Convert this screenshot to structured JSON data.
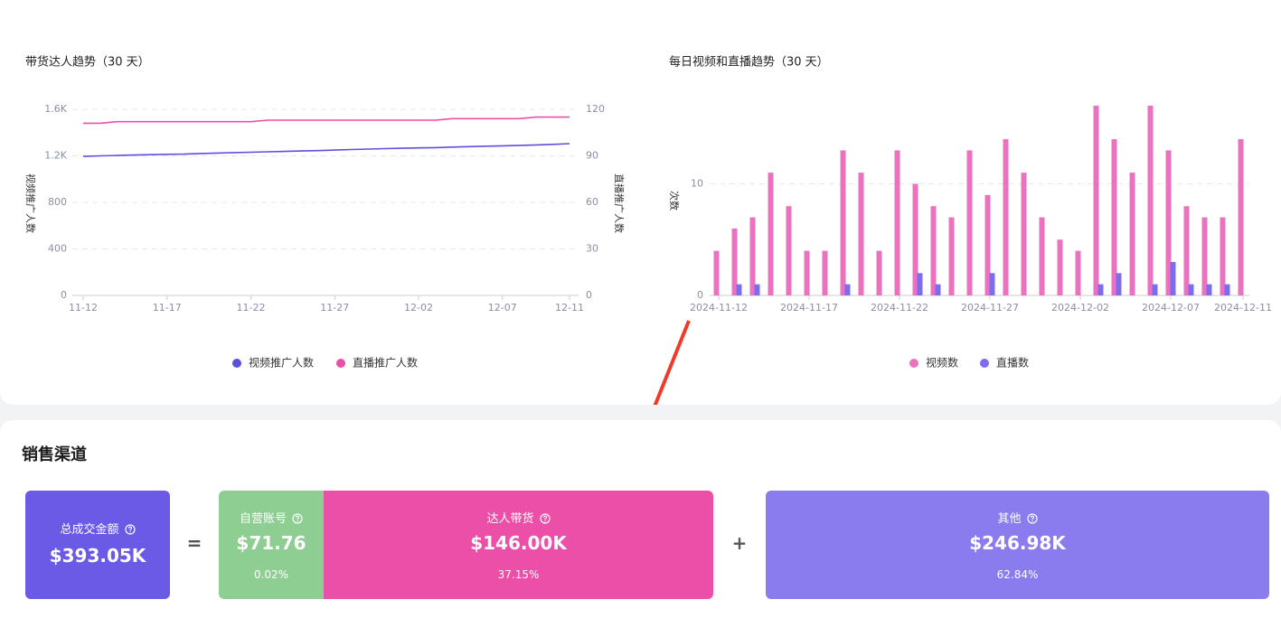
{
  "chart_data": [
    {
      "type": "line",
      "title": "带货达人趋势（30 天）",
      "ylabel": "视频推广人数",
      "y2label": "直播推广人数",
      "categories": [
        "11-12",
        null,
        null,
        null,
        null,
        "11-17",
        null,
        null,
        null,
        null,
        "11-22",
        null,
        null,
        null,
        null,
        "11-27",
        null,
        null,
        null,
        null,
        "12-02",
        null,
        null,
        null,
        null,
        "12-07",
        null,
        null,
        null,
        "12-11"
      ],
      "ylim": [
        0,
        1600
      ],
      "yticks": [
        0,
        400,
        800,
        {
          "value": 1200,
          "label": "1.2K"
        },
        {
          "value": 1600,
          "label": "1.6K"
        }
      ],
      "y2lim": [
        0,
        120
      ],
      "y2ticks": [
        0,
        30,
        60,
        90,
        120
      ],
      "grid": true,
      "series": [
        {
          "name": "视频推广人数",
          "color": "#5e4fe0",
          "values": [
            1195,
            1200,
            1203,
            1207,
            1210,
            1213,
            1215,
            1220,
            1224,
            1228,
            1231,
            1235,
            1238,
            1242,
            1245,
            1250,
            1254,
            1258,
            1262,
            1265,
            1268,
            1271,
            1275,
            1279,
            1283,
            1286,
            1290,
            1294,
            1299,
            1305
          ]
        },
        {
          "name": "直播推广人数",
          "color": "#ec4fa8",
          "axis": "y2",
          "values": [
            111,
            111,
            112,
            112,
            112,
            112,
            112,
            112,
            112,
            112,
            112,
            113,
            113,
            113,
            113,
            113,
            113,
            113,
            113,
            113,
            113,
            113,
            114,
            114,
            114,
            114,
            114,
            115,
            115,
            115
          ]
        }
      ]
    },
    {
      "type": "bar",
      "title": "每日视频和直播趋势（30 天）",
      "ylabel": "次数",
      "categories": [
        "2024-11-12",
        null,
        null,
        null,
        null,
        "2024-11-17",
        null,
        null,
        null,
        null,
        "2024-11-22",
        null,
        null,
        null,
        null,
        "2024-11-27",
        null,
        null,
        null,
        null,
        "2024-12-02",
        null,
        null,
        null,
        null,
        "2024-12-07",
        null,
        null,
        null,
        "2024-12-11"
      ],
      "ylim": [
        0,
        17
      ],
      "yticks": [
        0,
        10
      ],
      "grid": true,
      "series": [
        {
          "name": "视频数",
          "color": "#eb72bf",
          "values": [
            4,
            6,
            7,
            11,
            8,
            4,
            4,
            13,
            11,
            4,
            13,
            10,
            8,
            7,
            13,
            9,
            14,
            11,
            7,
            5,
            4,
            17,
            14,
            11,
            17,
            13,
            8,
            7,
            7,
            14
          ]
        },
        {
          "name": "直播数",
          "color": "#7b6cf0",
          "values": [
            0,
            1,
            1,
            0,
            0,
            0,
            0,
            1,
            0,
            0,
            0,
            2,
            1,
            0,
            0,
            2,
            0,
            0,
            0,
            0,
            0,
            1,
            2,
            0,
            1,
            3,
            1,
            1,
            1,
            0
          ]
        }
      ]
    }
  ],
  "sales_channel": {
    "title": "销售渠道",
    "total": {
      "label": "总成交金额",
      "value": "$393.05K"
    },
    "equals": "=",
    "plus": "+",
    "channels": [
      {
        "label": "自营账号",
        "value": "$71.76",
        "share": "0.02%"
      },
      {
        "label": "达人带货",
        "value": "$146.00K",
        "share": "37.15%"
      },
      {
        "label": "其他",
        "value": "$246.98K",
        "share": "62.84%"
      }
    ]
  }
}
